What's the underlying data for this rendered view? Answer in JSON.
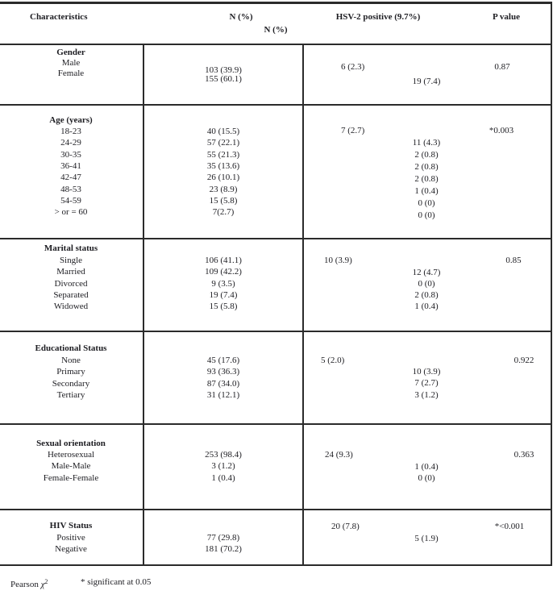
{
  "header": {
    "characteristics": "Characteristics",
    "n_pct_line1": "N (%)",
    "n_pct_line2": "N (%)",
    "hsv_positive": "HSV-2 positive (9.7%)",
    "p_value": "P value"
  },
  "sections": [
    {
      "name": "Gender",
      "labels": [
        "Male",
        "Female"
      ],
      "n_values": [
        "103 (39.9)",
        "155 (60.1)"
      ],
      "hsv_first": "6 (2.3)",
      "hsv_rest": [
        "19 (7.4)"
      ],
      "p_value": "0.87"
    },
    {
      "name": "Age (years)",
      "labels": [
        "18-23",
        "24-29",
        "30-35",
        "36-41",
        "42-47",
        "48-53",
        "54-59",
        "> or = 60"
      ],
      "n_values": [
        "40 (15.5)",
        "57 (22.1)",
        "55 (21.3)",
        "35 (13.6)",
        "26 (10.1)",
        "23 (8.9)",
        "15 (5.8)",
        "7(2.7)"
      ],
      "hsv_first": "7 (2.7)",
      "hsv_rest": [
        "11 (4.3)",
        "2 (0.8)",
        "2 (0.8)",
        "2 (0.8)",
        "1 (0.4)",
        "0 (0)",
        "0 (0)"
      ],
      "p_value": "*0.003"
    },
    {
      "name": "Marital status",
      "labels": [
        "Single",
        "Married",
        "Divorced",
        "Separated",
        "Widowed"
      ],
      "n_values": [
        "106 (41.1)",
        "109 (42.2)",
        "9 (3.5)",
        "19 (7.4)",
        "15 (5.8)"
      ],
      "hsv_first": "10 (3.9)",
      "hsv_rest": [
        "12 (4.7)",
        "0 (0)",
        "2 (0.8)",
        "1 (0.4)"
      ],
      "p_value": "0.85"
    },
    {
      "name": "Educational Status",
      "labels": [
        "None",
        "Primary",
        "Secondary",
        "Tertiary"
      ],
      "n_values": [
        "45 (17.6)",
        "93 (36.3)",
        "87 (34.0)",
        "31 (12.1)"
      ],
      "hsv_first": "5 (2.0)",
      "hsv_rest": [
        "10 (3.9)",
        "7 (2.7)",
        "3 (1.2)"
      ],
      "p_value": "0.922"
    },
    {
      "name": "Sexual orientation",
      "labels": [
        "Heterosexual",
        "Male-Male",
        "Female-Female"
      ],
      "n_values": [
        "253 (98.4)",
        "3 (1.2)",
        "1 (0.4)"
      ],
      "hsv_first": "24 (9.3)",
      "hsv_rest": [
        "1 (0.4)",
        "0 (0)"
      ],
      "p_value": "0.363"
    },
    {
      "name": "HIV Status",
      "labels": [
        "Positive",
        "Negative"
      ],
      "n_values": [
        "77 (29.8)",
        "181 (70.2)"
      ],
      "hsv_first": "20 (7.8)",
      "hsv_rest": [
        "5 (1.9)"
      ],
      "p_value": "*<0.001"
    }
  ],
  "footer": {
    "pearson_label": "Pearson ",
    "chi": "χ",
    "chi_sup": "2",
    "significance_note": "* significant at 0.05"
  }
}
